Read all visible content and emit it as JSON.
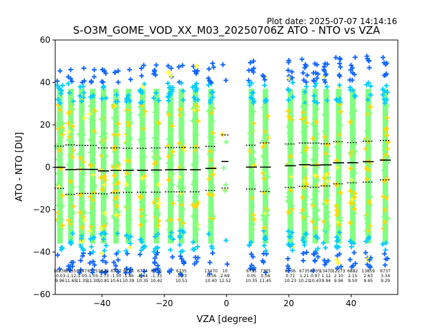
{
  "plot_date": "Plot date: 2025-07-07 14:14:16",
  "chart_data": {
    "type": "scatter",
    "title": "S-O3M_GOME_VOD_XX_M03_20250706Z ATO - NTO vs VZA",
    "xlabel": "VZA [degree]",
    "ylabel": "ATO - NTO [DU]",
    "xlim": [
      -55,
      55
    ],
    "ylim": [
      -60,
      60
    ],
    "xticks": [
      -40,
      -20,
      0,
      20,
      40
    ],
    "yticks": [
      -60,
      -40,
      -20,
      0,
      20,
      40,
      60
    ],
    "grid": false,
    "colors": {
      "low_density": "#1166ff",
      "mid_low": "#00ccff",
      "mid": "#80ff80",
      "high": "#ffd700",
      "peak": "#ffff40",
      "mean_line": "#000000",
      "std_line": "#000000"
    },
    "bins": [
      {
        "x": -53.5,
        "count": "16236",
        "mean": "-0.03",
        "std": "9.96"
      },
      {
        "x": -50.0,
        "count": "6755",
        "mean": "-1.12",
        "std": "11.65"
      },
      {
        "x": -46.5,
        "count": "6747",
        "mean": "-1.00",
        "std": "11.35"
      },
      {
        "x": -43.0,
        "count": "6575",
        "mean": "-1.03",
        "std": "11.30"
      },
      {
        "x": -39.5,
        "count": "9628",
        "mean": "-1.73",
        "std": "10.81"
      },
      {
        "x": -35.5,
        "count": "6727",
        "mean": "-1.50",
        "std": "10.61"
      },
      {
        "x": -31.5,
        "count": "6724",
        "mean": "-1.46",
        "std": "10.39"
      },
      {
        "x": -27.0,
        "count": "6714",
        "mean": "-1.44",
        "std": "10.35"
      },
      {
        "x": -22.5,
        "count": "6716",
        "mean": "-1.33",
        "std": "10.42"
      },
      {
        "x": -18.0,
        "count": "",
        "mean": "",
        "std": ""
      },
      {
        "x": -14.5,
        "count": "6735",
        "mean": "-1.13",
        "std": "10.51"
      },
      {
        "x": -10.0,
        "count": "",
        "mean": "",
        "std": ""
      },
      {
        "x": -5.0,
        "count": "13470",
        "mean": "-0.56",
        "std": "10.40"
      },
      {
        "x": -0.5,
        "count": "10",
        "mean": "2.69",
        "std": "12.52"
      },
      {
        "x": 8.0,
        "count": "6735",
        "mean": "0.05",
        "std": "10.35"
      },
      {
        "x": 12.5,
        "count": "7375",
        "mean": "0.04",
        "std": "11.45"
      },
      {
        "x": 20.5,
        "count": "6736",
        "mean": "0.71",
        "std": "10.23"
      },
      {
        "x": 25.0,
        "count": "6735",
        "mean": "1.21",
        "std": "10.21"
      },
      {
        "x": 28.5,
        "count": "6735",
        "mean": "0.97",
        "std": "10.43"
      },
      {
        "x": 32.0,
        "count": "13470",
        "mean": "1.12",
        "std": "9.94"
      },
      {
        "x": 36.0,
        "count": "12273",
        "mean": "2.10",
        "std": "9.94"
      },
      {
        "x": 40.5,
        "count": "6882",
        "mean": "2.15",
        "std": "9.50"
      },
      {
        "x": 45.5,
        "count": "13859",
        "mean": "2.63",
        "std": "9.65"
      },
      {
        "x": 51.0,
        "count": "6737",
        "mean": "3.34",
        "std": "9.29"
      }
    ]
  }
}
